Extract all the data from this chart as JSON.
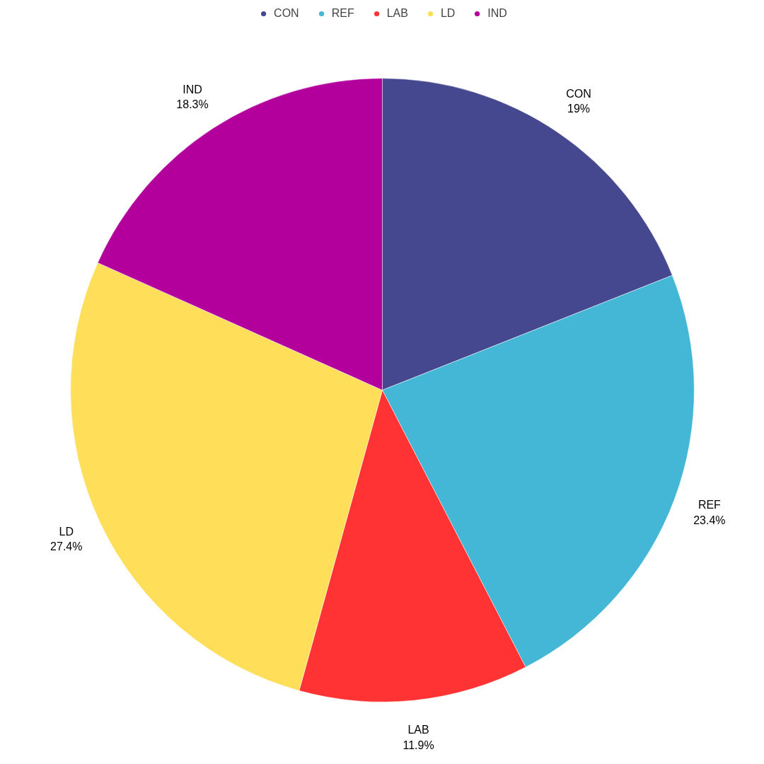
{
  "chart_data": {
    "type": "pie",
    "categories": [
      "CON",
      "REF",
      "LAB",
      "LD",
      "IND"
    ],
    "values": [
      19,
      23.4,
      11.9,
      27.4,
      18.3
    ],
    "value_labels": [
      "19%",
      "23.4%",
      "11.9%",
      "27.4%",
      "18.3%"
    ],
    "colors": [
      "#46488f",
      "#43b7d5",
      "#ff3333",
      "#ffdf5a",
      "#b3009d"
    ],
    "legend": "top"
  }
}
